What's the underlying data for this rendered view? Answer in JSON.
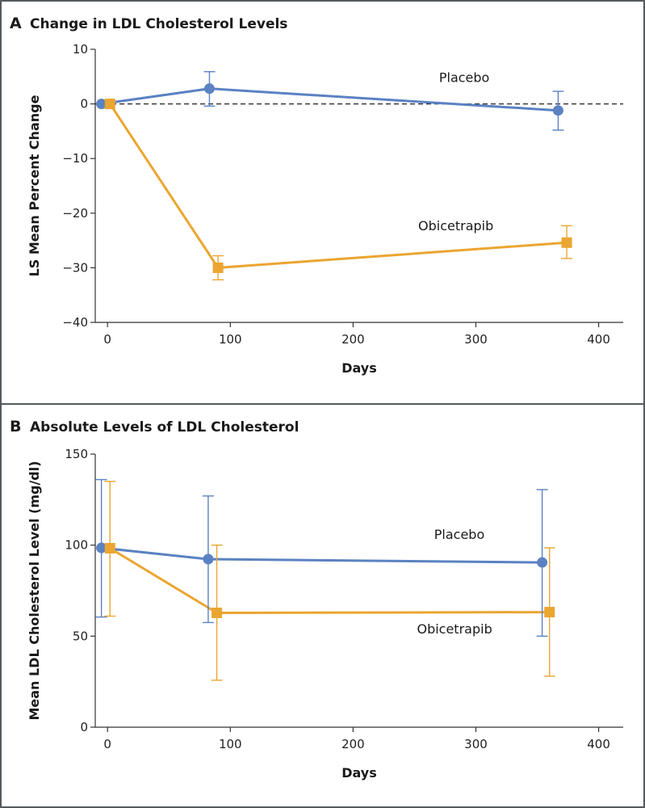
{
  "chart_data": [
    {
      "type": "line",
      "panel": "A",
      "title": "Change in LDL Cholesterol Levels",
      "xlabel": "Days",
      "ylabel": "LS Mean Percent Change",
      "xlim": [
        -10,
        420
      ],
      "ylim": [
        -40,
        10
      ],
      "xticks": [
        0,
        100,
        200,
        300,
        400
      ],
      "yticks": [
        10,
        0,
        -10,
        -20,
        -30,
        -40
      ],
      "ytick_labels": [
        "10",
        "0",
        "−10",
        "−20",
        "−30",
        "−40"
      ],
      "reference_line": 0,
      "series": [
        {
          "name": "Placebo",
          "color": "#5b82c2",
          "marker": "circle",
          "label_pos": [
            270,
            4
          ],
          "points": [
            {
              "x": -5,
              "y": 0,
              "lo": null,
              "hi": null
            },
            {
              "x": 83,
              "y": 2.8,
              "lo": -0.4,
              "hi": 5.9
            },
            {
              "x": 367,
              "y": -1.2,
              "lo": -4.8,
              "hi": 2.3
            }
          ]
        },
        {
          "name": "Obicetrapib",
          "color": "#eba531",
          "marker": "square",
          "label_pos": [
            253,
            -23.1
          ],
          "points": [
            {
              "x": 2,
              "y": 0,
              "lo": null,
              "hi": null
            },
            {
              "x": 90,
              "y": -30,
              "lo": -32.2,
              "hi": -27.8
            },
            {
              "x": 374,
              "y": -25.4,
              "lo": -28.3,
              "hi": -22.3
            }
          ]
        }
      ]
    },
    {
      "type": "line",
      "panel": "B",
      "title": "Absolute Levels of LDL Cholesterol",
      "xlabel": "Days",
      "ylabel": "Mean LDL Cholesterol Level (mg/dl)",
      "xlim": [
        -10,
        420
      ],
      "ylim": [
        0,
        150
      ],
      "xticks": [
        0,
        100,
        200,
        300,
        400
      ],
      "yticks": [
        150,
        100,
        50,
        0
      ],
      "ytick_labels": [
        "150",
        "100",
        "50",
        "0"
      ],
      "series": [
        {
          "name": "Placebo",
          "color": "#5b82c2",
          "marker": "circle",
          "label_pos": [
            266,
            103.5
          ],
          "points": [
            {
              "x": -5,
              "y": 98.5,
              "lo": 60.5,
              "hi": 136
            },
            {
              "x": 82,
              "y": 92.3,
              "lo": 57.5,
              "hi": 127
            },
            {
              "x": 354,
              "y": 90.5,
              "lo": 50,
              "hi": 130.5
            }
          ]
        },
        {
          "name": "Obicetrapib",
          "color": "#eba531",
          "marker": "square",
          "label_pos": [
            252,
            51.5
          ],
          "points": [
            {
              "x": 2,
              "y": 98.3,
              "lo": 61,
              "hi": 135
            },
            {
              "x": 89,
              "y": 62.8,
              "lo": 25.8,
              "hi": 100
            },
            {
              "x": 360,
              "y": 63.2,
              "lo": 28,
              "hi": 98.5
            }
          ]
        }
      ]
    }
  ]
}
